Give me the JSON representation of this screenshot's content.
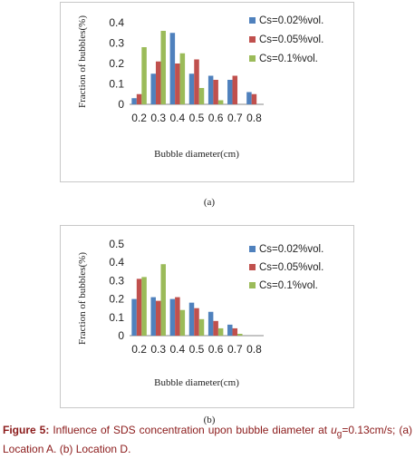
{
  "chart_data": [
    {
      "type": "bar",
      "categories": [
        "0.2",
        "0.3",
        "0.4",
        "0.5",
        "0.6",
        "0.7",
        "0.8"
      ],
      "series": [
        {
          "name": "Cs=0.02%vol.",
          "color": "#4f81bd",
          "values": [
            0.03,
            0.15,
            0.35,
            0.15,
            0.14,
            0.12,
            0.06
          ]
        },
        {
          "name": "Cs=0.05%vol.",
          "color": "#c0504d",
          "values": [
            0.05,
            0.21,
            0.2,
            0.22,
            0.12,
            0.14,
            0.05
          ]
        },
        {
          "name": "Cs=0.1%vol.",
          "color": "#9bbb59",
          "values": [
            0.28,
            0.36,
            0.25,
            0.08,
            0.02,
            0,
            0
          ]
        }
      ],
      "xlabel": "Bubble diameter(cm)",
      "ylabel": "Fraction of bubbles(%)",
      "ylim": [
        0,
        0.4
      ],
      "yticks": [
        "0",
        "0.1",
        "0.2",
        "0.3",
        "0.4"
      ],
      "legend": "right",
      "grid": false
    },
    {
      "type": "bar",
      "categories": [
        "0.2",
        "0.3",
        "0.4",
        "0.5",
        "0.6",
        "0.7",
        "0.8"
      ],
      "series": [
        {
          "name": "Cs=0.02%vol.",
          "color": "#4f81bd",
          "values": [
            0.2,
            0.21,
            0.2,
            0.18,
            0.13,
            0.06,
            0
          ]
        },
        {
          "name": "Cs=0.05%vol.",
          "color": "#c0504d",
          "values": [
            0.31,
            0.19,
            0.21,
            0.15,
            0.08,
            0.04,
            0
          ]
        },
        {
          "name": "Cs=0.1%vol.",
          "color": "#9bbb59",
          "values": [
            0.32,
            0.39,
            0.14,
            0.09,
            0.04,
            0.01,
            0
          ]
        }
      ],
      "xlabel": "Bubble diameter(cm)",
      "ylabel": "Fraction of bubbles(%)",
      "ylim": [
        0,
        0.5
      ],
      "yticks": [
        "0",
        "0.1",
        "0.2",
        "0.3",
        "0.4",
        "0.5"
      ],
      "legend": "right",
      "grid": false
    }
  ],
  "panels": {
    "a_label": "(a)",
    "b_label": "(b)"
  },
  "caption": {
    "figure_label": "Figure 5:",
    "text_before_symbol": " Influence of SDS concentration upon bubble diameter at ",
    "symbol": "u",
    "subscript": "g",
    "text_after_symbol": "=0.13cm/s; (a) Location A. (b) Location D."
  }
}
